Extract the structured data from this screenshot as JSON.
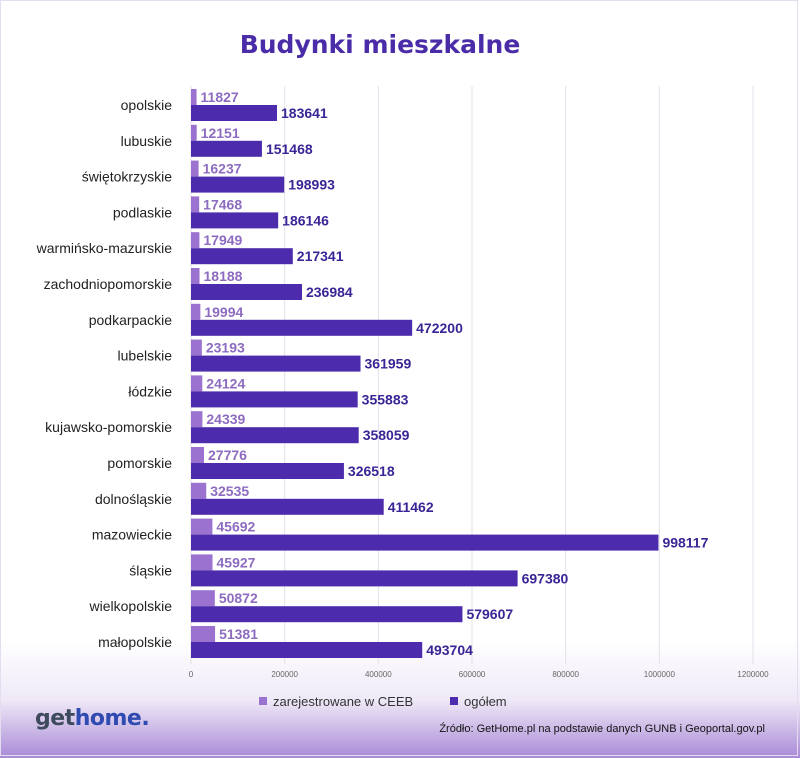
{
  "chart_data": {
    "type": "bar",
    "orientation": "horizontal",
    "title": "Budynki mieszkalne",
    "categories": [
      "opolskie",
      "lubuskie",
      "świętokrzyskie",
      "podlaskie",
      "warmińsko-mazurskie",
      "zachodniopomorskie",
      "podkarpackie",
      "lubelskie",
      "łódzkie",
      "kujawsko-pomorskie",
      "pomorskie",
      "dolnośląskie",
      "mazowieckie",
      "śląskie",
      "wielkopolskie",
      "małopolskie"
    ],
    "series": [
      {
        "name": "zarejestrowane w CEEB",
        "color": "#9b72cf",
        "values": [
          11827,
          12151,
          16237,
          17468,
          17949,
          18188,
          19994,
          23193,
          24124,
          24339,
          27776,
          32535,
          45692,
          45927,
          50872,
          51381
        ]
      },
      {
        "name": "ogółem",
        "color": "#4c2bac",
        "values": [
          183641,
          151468,
          198993,
          186146,
          217341,
          236984,
          472200,
          361959,
          355883,
          358059,
          326518,
          411462,
          998117,
          697380,
          579607,
          493704
        ]
      }
    ],
    "xlim": [
      0,
      1200000
    ],
    "xticks": [
      0,
      200000,
      400000,
      600000,
      800000,
      1000000,
      1200000
    ],
    "xtick_labels": [
      "0",
      "200000",
      "400000",
      "600000",
      "800000",
      "1000000",
      "1200000"
    ],
    "grid": true,
    "legend_position": "bottom"
  },
  "branding": {
    "logo_get": "get",
    "logo_home": "home",
    "logo_dot": "."
  },
  "source_text": "Źródło: GetHome.pl na podstawie danych GUNB i Geoportal.gov.pl"
}
